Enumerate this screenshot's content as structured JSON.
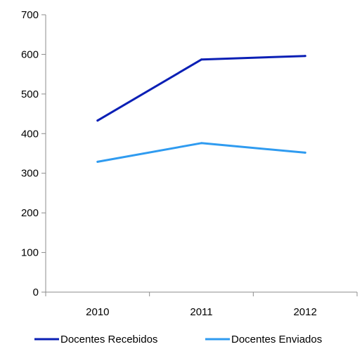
{
  "chart_data": {
    "type": "line",
    "title": "",
    "xlabel": "",
    "ylabel": "",
    "categories": [
      "2010",
      "2011",
      "2012"
    ],
    "ylim": [
      0,
      700
    ],
    "yticks": [
      0,
      100,
      200,
      300,
      400,
      500,
      600,
      700
    ],
    "grid": false,
    "legend_position": "bottom",
    "series": [
      {
        "name": "Docentes Recebidos",
        "values": [
          433,
          587,
          596
        ],
        "color": "#0a1fb5"
      },
      {
        "name": "Docentes Enviados",
        "values": [
          329,
          376,
          352
        ],
        "color": "#2f9bf0"
      }
    ]
  }
}
